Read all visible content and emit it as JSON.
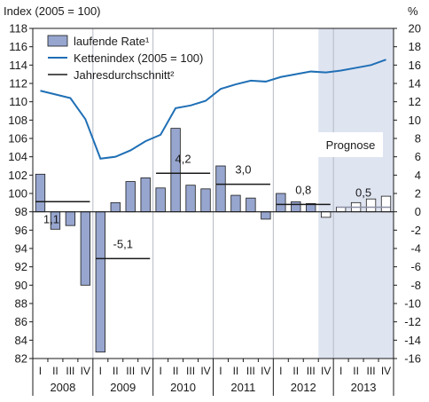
{
  "chart_data": {
    "type": "bar",
    "left_axis_title": "Index (2005 = 100)",
    "right_axis_unit": "%",
    "left_ylim": [
      82,
      118
    ],
    "left_ticks": [
      82,
      84,
      86,
      88,
      90,
      92,
      94,
      96,
      98,
      100,
      102,
      104,
      106,
      108,
      110,
      112,
      114,
      116,
      118
    ],
    "right_ylim": [
      -16,
      20
    ],
    "right_ticks": [
      -16,
      -14,
      -12,
      -10,
      -8,
      -6,
      -4,
      -2,
      0,
      2,
      4,
      6,
      8,
      10,
      12,
      14,
      16,
      18,
      20
    ],
    "quarter_labels": [
      "I",
      "II",
      "III",
      "IV",
      "I",
      "II",
      "III",
      "IV",
      "I",
      "II",
      "III",
      "IV",
      "I",
      "II",
      "III",
      "IV",
      "I",
      "II",
      "III",
      "IV",
      "I",
      "II",
      "III",
      "IV"
    ],
    "years": [
      "2008",
      "2009",
      "2010",
      "2011",
      "2012",
      "2013"
    ],
    "forecast_start_index": 19,
    "forecast_label": "Prognose",
    "series": [
      {
        "name": "laufende Rate¹",
        "type": "bar",
        "axis": "right",
        "values": [
          4.1,
          -1.9,
          -1.5,
          -8.0,
          -15.3,
          1.0,
          3.3,
          3.7,
          2.6,
          9.1,
          2.9,
          2.5,
          5.0,
          1.8,
          1.5,
          -0.8,
          2.0,
          1.1,
          0.9,
          -0.6,
          0.5,
          1.0,
          1.4,
          1.7
        ],
        "color": "#97a6cf",
        "forecast_color": "#ffffff"
      },
      {
        "name": "Kettenindex (2005 = 100)",
        "type": "line",
        "axis": "left",
        "values": [
          111.2,
          110.8,
          110.4,
          108.1,
          103.8,
          104.0,
          104.7,
          105.7,
          106.4,
          109.3,
          109.6,
          110.1,
          111.4,
          111.9,
          112.3,
          112.2,
          112.7,
          113.0,
          113.3,
          113.2,
          113.4,
          113.7,
          114.0,
          114.6
        ],
        "color": "#1f6fb5"
      },
      {
        "name": "Jahresdurchschnitt²",
        "type": "segments",
        "axis": "right",
        "values": [
          1.1,
          -5.1,
          4.2,
          3.0,
          0.8,
          0.5
        ],
        "labels": [
          "1,1",
          "-5,1",
          "4,2",
          "3,0",
          "0,8",
          "0,5"
        ],
        "color": "#1a1a1a",
        "forecast_color": "#8a8fa3"
      }
    ],
    "legend_placement": "top-left",
    "grid": "vertical year separators"
  }
}
